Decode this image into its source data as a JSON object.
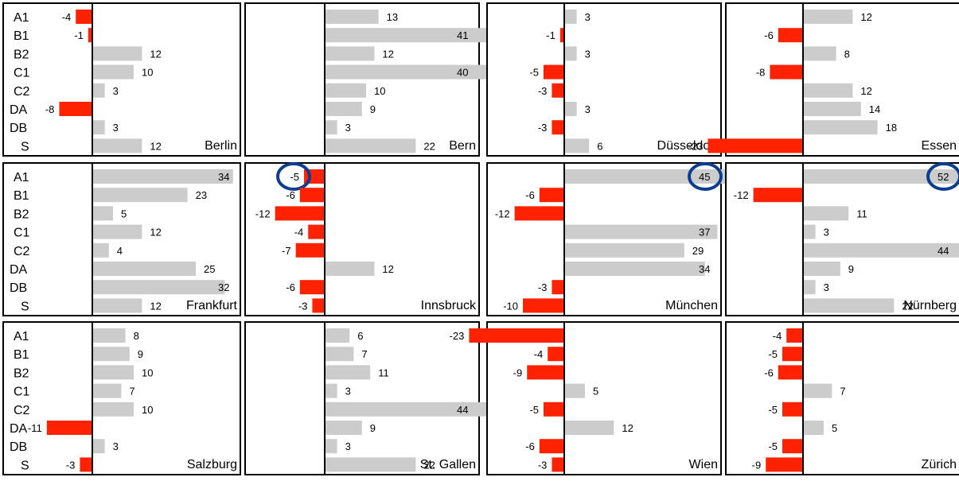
{
  "chart_data": {
    "type": "bar",
    "orientation": "horizontal",
    "layout": "small-multiples grid 3x4",
    "categories": [
      "A1",
      "B1",
      "B2",
      "C1",
      "C2",
      "DA",
      "DB",
      "S"
    ],
    "colors": {
      "positive": "#cccccc",
      "negative": "#ff2200",
      "highlight": "#0b3d91"
    },
    "series": [
      {
        "name": "Berlin",
        "values": [
          -4,
          -1,
          12,
          10,
          3,
          -8,
          3,
          12
        ]
      },
      {
        "name": "Bern",
        "values": [
          13,
          41,
          12,
          40,
          10,
          9,
          3,
          22
        ]
      },
      {
        "name": "Düsseldorf",
        "values": [
          3,
          -1,
          3,
          -5,
          -3,
          3,
          -3,
          6
        ]
      },
      {
        "name": "Essen",
        "values": [
          12,
          -6,
          8,
          -8,
          12,
          14,
          18,
          -23
        ]
      },
      {
        "name": "Frankfurt",
        "values": [
          34,
          23,
          5,
          12,
          4,
          25,
          32,
          12
        ]
      },
      {
        "name": "Innsbruck",
        "values": [
          -5,
          -6,
          -12,
          -4,
          -7,
          12,
          -6,
          -3
        ]
      },
      {
        "name": "München",
        "values": [
          45,
          -6,
          -12,
          37,
          29,
          34,
          -3,
          -10
        ]
      },
      {
        "name": "Nürnberg",
        "values": [
          52,
          -12,
          11,
          3,
          44,
          9,
          3,
          22
        ]
      },
      {
        "name": "Salzburg",
        "values": [
          8,
          9,
          10,
          7,
          10,
          -11,
          3,
          -3
        ]
      },
      {
        "name": "St. Gallen",
        "values": [
          6,
          7,
          11,
          3,
          44,
          9,
          3,
          22
        ]
      },
      {
        "name": "Wien",
        "values": [
          -23,
          -4,
          -9,
          5,
          -5,
          12,
          -6,
          -3
        ]
      },
      {
        "name": "Zürich",
        "values": [
          -4,
          -5,
          -6,
          7,
          -5,
          5,
          -5,
          -9
        ]
      }
    ],
    "highlights": [
      {
        "series": "Innsbruck",
        "category": "A1",
        "value": -5
      },
      {
        "series": "München",
        "category": "A1",
        "value": 45
      },
      {
        "series": "Nürnberg",
        "category": "A1",
        "value": 52
      }
    ]
  }
}
